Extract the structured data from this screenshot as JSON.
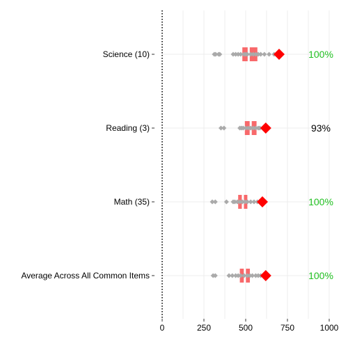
{
  "chart_data": {
    "type": "boxplot",
    "xlim": [
      0,
      1000
    ],
    "x_ticks": [
      0,
      250,
      500,
      750,
      1000
    ],
    "x_tick_labels": [
      "0",
      "250",
      "500",
      "750",
      "1000"
    ],
    "grid": true,
    "reference_line_x": 0,
    "colors": {
      "box": "#f8696b",
      "points": "#aaaaaa",
      "marker": "#ff0000",
      "pct_full": "#22c022",
      "pct_partial": "#000000",
      "grid": "#ececec"
    },
    "rows": [
      {
        "label": "Science (10)",
        "box": [
          480,
          570
        ],
        "median": 518,
        "points": [
          312,
          320,
          338,
          345,
          425,
          440,
          455,
          470,
          490,
          500,
          510,
          530,
          545,
          560,
          575,
          590,
          612,
          640,
          670
        ],
        "marker": 700,
        "pct": "100%",
        "pct_full": true
      },
      {
        "label": "Reading (3)",
        "box": [
          495,
          565
        ],
        "median": 530,
        "points": [
          352,
          370,
          465,
          475,
          485,
          500,
          515,
          530,
          545,
          560,
          575,
          585
        ],
        "marker": 620,
        "pct": "93%",
        "pct_full": false
      },
      {
        "label": "Math (35)",
        "box": [
          455,
          510
        ],
        "median": 483,
        "points": [
          300,
          318,
          385,
          425,
          435,
          450,
          465,
          480,
          495,
          510,
          530,
          550,
          570
        ],
        "marker": 600,
        "pct": "100%",
        "pct_full": true
      },
      {
        "label": "Average Across All Common Items",
        "box": [
          465,
          525
        ],
        "median": 495,
        "points": [
          305,
          318,
          400,
          420,
          440,
          455,
          470,
          490,
          510,
          525,
          540,
          560,
          575,
          590
        ],
        "marker": 620,
        "pct": "100%",
        "pct_full": true
      }
    ]
  }
}
